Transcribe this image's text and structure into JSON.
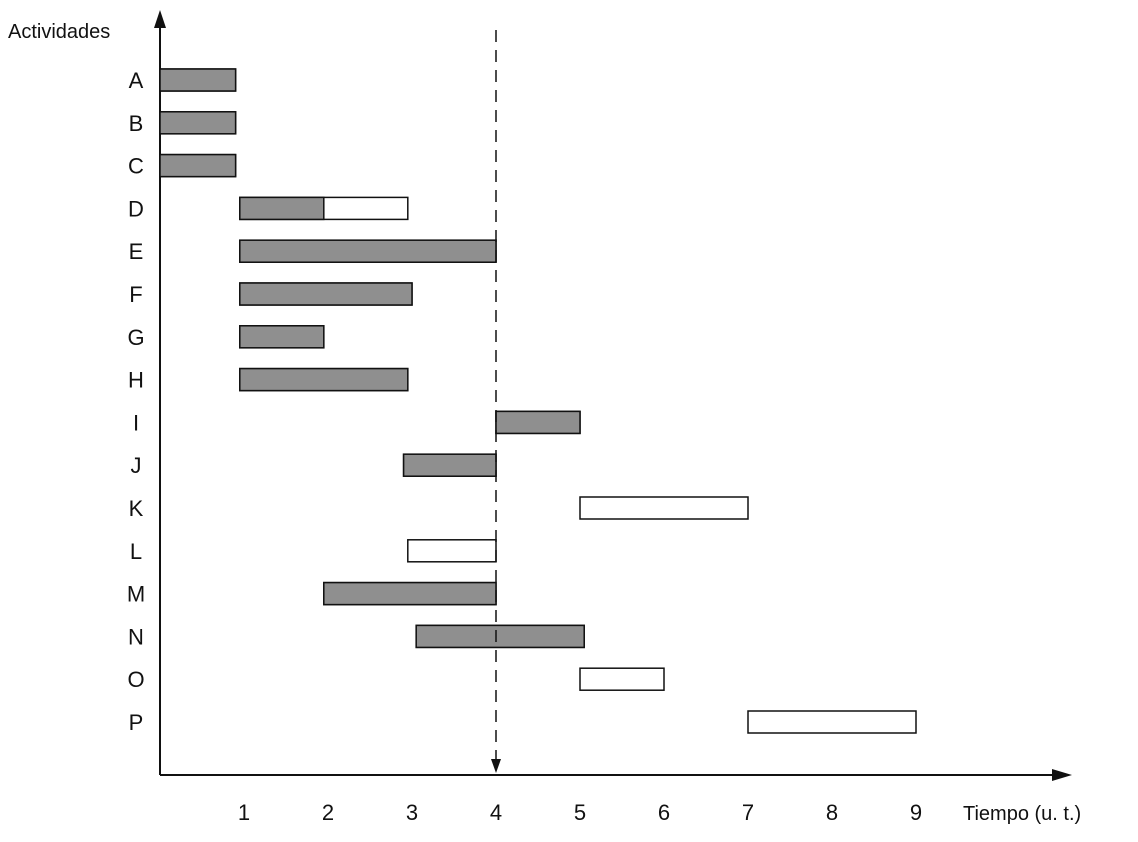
{
  "chart_data": {
    "type": "gantt",
    "ylabel": "Actividades",
    "xlabel": "Tiempo (u. t.)",
    "x_ticks": [
      1,
      2,
      3,
      4,
      5,
      6,
      7,
      8,
      9
    ],
    "xlim": [
      0,
      10
    ],
    "grid": false,
    "marker": {
      "x": 4,
      "style": "dashed"
    },
    "activities": [
      {
        "name": "A",
        "start": 0,
        "end": 0.9,
        "done": 0.9
      },
      {
        "name": "B",
        "start": 0,
        "end": 0.9,
        "done": 0.9
      },
      {
        "name": "C",
        "start": 0,
        "end": 0.9,
        "done": 0.9
      },
      {
        "name": "D",
        "start": 0.95,
        "end": 2.95,
        "done": 1.95
      },
      {
        "name": "E",
        "start": 0.95,
        "end": 4.0,
        "done": 4.0
      },
      {
        "name": "F",
        "start": 0.95,
        "end": 3.0,
        "done": 3.0
      },
      {
        "name": "G",
        "start": 0.95,
        "end": 1.95,
        "done": 1.95
      },
      {
        "name": "H",
        "start": 0.95,
        "end": 2.95,
        "done": 2.95
      },
      {
        "name": "I",
        "start": 4.0,
        "end": 5.0,
        "done": 5.0
      },
      {
        "name": "J",
        "start": 2.9,
        "end": 4.0,
        "done": 4.0
      },
      {
        "name": "K",
        "start": 5.0,
        "end": 7.0,
        "done": 5.0
      },
      {
        "name": "L",
        "start": 2.95,
        "end": 4.0,
        "done": 2.95
      },
      {
        "name": "M",
        "start": 1.95,
        "end": 4.0,
        "done": 4.0
      },
      {
        "name": "N",
        "start": 3.05,
        "end": 5.05,
        "done": 5.05
      },
      {
        "name": "O",
        "start": 5.0,
        "end": 6.0,
        "done": 5.0
      },
      {
        "name": "P",
        "start": 7.0,
        "end": 9.0,
        "done": 7.0
      }
    ]
  },
  "colors": {
    "done": "#8f8f8f",
    "pending": "#ffffff",
    "stroke": "#111111",
    "axis": "#111111"
  }
}
